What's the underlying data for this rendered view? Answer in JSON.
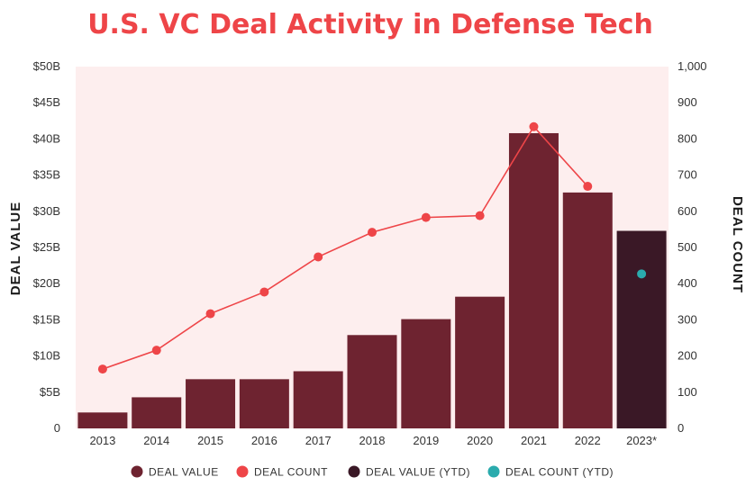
{
  "chart_data": {
    "type": "bar",
    "title": "U.S. VC Deal Activity in Defense Tech",
    "categories": [
      "2013",
      "2014",
      "2015",
      "2016",
      "2017",
      "2018",
      "2019",
      "2020",
      "2021",
      "2022",
      "2023*"
    ],
    "left_axis": {
      "label": "DEAL VALUE",
      "ylim": [
        0,
        50
      ],
      "ticks": [
        0,
        5,
        10,
        15,
        20,
        25,
        30,
        35,
        40,
        45,
        50
      ],
      "tick_labels": [
        "0",
        "$5B",
        "$10B",
        "$15B",
        "$20B",
        "$25B",
        "$30B",
        "$35B",
        "$40B",
        "$45B",
        "$50B"
      ]
    },
    "right_axis": {
      "label": "DEAL COUNT",
      "ylim": [
        0,
        1000
      ],
      "ticks": [
        0,
        100,
        200,
        300,
        400,
        500,
        600,
        700,
        800,
        900,
        1000
      ],
      "tick_labels": [
        "0",
        "100",
        "200",
        "300",
        "400",
        "500",
        "600",
        "700",
        "800",
        "900",
        "1,000"
      ]
    },
    "series": [
      {
        "name": "DEAL VALUE",
        "type": "bar",
        "axis": "left",
        "color": "#6e2330",
        "values": [
          2.2,
          4.3,
          6.8,
          6.8,
          7.9,
          12.9,
          15.1,
          18.2,
          40.8,
          32.6,
          null
        ]
      },
      {
        "name": "DEAL COUNT",
        "type": "line",
        "axis": "right",
        "color": "#ee4548",
        "values": [
          164,
          216,
          317,
          377,
          474,
          542,
          583,
          588,
          834,
          669,
          null
        ]
      },
      {
        "name": "DEAL VALUE (YTD)",
        "type": "bar",
        "axis": "left",
        "color": "#3a1826",
        "values": [
          null,
          null,
          null,
          null,
          null,
          null,
          null,
          null,
          null,
          null,
          27.3
        ]
      },
      {
        "name": "DEAL COUNT (YTD)",
        "type": "scatter",
        "axis": "right",
        "color": "#2aabad",
        "values": [
          null,
          null,
          null,
          null,
          null,
          null,
          null,
          null,
          null,
          null,
          427
        ]
      }
    ],
    "plot_background": "#fdeeee",
    "legend_position": "bottom"
  }
}
